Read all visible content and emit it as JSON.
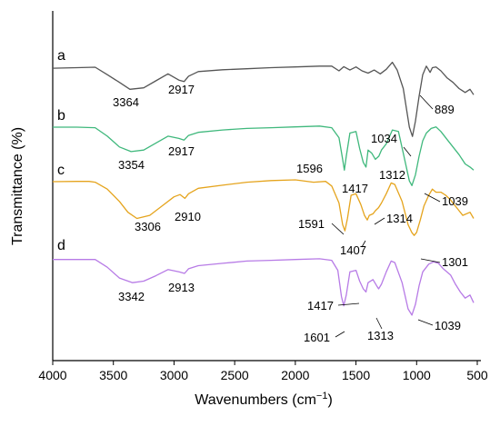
{
  "chart_data": {
    "type": "line",
    "title": "",
    "xlabel": "Wavenumbers (cm",
    "xlabel_sup": "−1",
    "xlabel_close": ")",
    "ylabel": "Transmittance (%)",
    "xlim": [
      4000,
      500
    ],
    "x_reversed": true,
    "y_ticks_shown": false,
    "grid": false,
    "x_ticks": [
      "4000",
      "3500",
      "3000",
      "2500",
      "2000",
      "1500",
      "1000",
      "500"
    ],
    "series": [
      {
        "name": "a",
        "color": "#555555",
        "points": [
          [
            4000,
            0.18
          ],
          [
            3800,
            0.15
          ],
          [
            3650,
            0.12
          ],
          [
            3550,
            0.6
          ],
          [
            3450,
            1.1
          ],
          [
            3364,
            1.55
          ],
          [
            3250,
            1.45
          ],
          [
            3150,
            1.0
          ],
          [
            3050,
            0.55
          ],
          [
            2960,
            0.95
          ],
          [
            2917,
            1.05
          ],
          [
            2880,
            0.7
          ],
          [
            2800,
            0.4
          ],
          [
            2600,
            0.28
          ],
          [
            2400,
            0.22
          ],
          [
            2200,
            0.15
          ],
          [
            2000,
            0.1
          ],
          [
            1800,
            0.05
          ],
          [
            1700,
            0.05
          ],
          [
            1640,
            0.35
          ],
          [
            1600,
            0.08
          ],
          [
            1550,
            0.3
          ],
          [
            1500,
            0.1
          ],
          [
            1450,
            0.35
          ],
          [
            1400,
            0.5
          ],
          [
            1350,
            0.3
          ],
          [
            1300,
            0.55
          ],
          [
            1250,
            0.25
          ],
          [
            1200,
            -0.2
          ],
          [
            1160,
            0.3
          ],
          [
            1110,
            1.5
          ],
          [
            1060,
            4.0
          ],
          [
            1034,
            4.6
          ],
          [
            1010,
            3.6
          ],
          [
            980,
            2.0
          ],
          [
            950,
            0.6
          ],
          [
            920,
            0.05
          ],
          [
            900,
            0.3
          ],
          [
            889,
            0.45
          ],
          [
            870,
            0.15
          ],
          [
            840,
            0.1
          ],
          [
            800,
            0.35
          ],
          [
            750,
            0.8
          ],
          [
            700,
            1.1
          ],
          [
            650,
            1.5
          ],
          [
            600,
            1.75
          ],
          [
            560,
            1.55
          ],
          [
            530,
            1.9
          ]
        ],
        "peak_labels": [
          "3364",
          "2917",
          "889"
        ]
      },
      {
        "name": "b",
        "color": "#3fb87c",
        "points": [
          [
            4000,
            0.12
          ],
          [
            3800,
            0.12
          ],
          [
            3650,
            0.15
          ],
          [
            3550,
            0.7
          ],
          [
            3450,
            1.4
          ],
          [
            3354,
            1.7
          ],
          [
            3250,
            1.6
          ],
          [
            3150,
            1.15
          ],
          [
            3050,
            0.7
          ],
          [
            2960,
            0.85
          ],
          [
            2917,
            0.95
          ],
          [
            2880,
            0.65
          ],
          [
            2800,
            0.45
          ],
          [
            2600,
            0.3
          ],
          [
            2400,
            0.2
          ],
          [
            2200,
            0.15
          ],
          [
            2000,
            0.1
          ],
          [
            1800,
            0.05
          ],
          [
            1700,
            0.15
          ],
          [
            1640,
            0.8
          ],
          [
            1610,
            2.2
          ],
          [
            1596,
            2.9
          ],
          [
            1580,
            2.0
          ],
          [
            1550,
            0.5
          ],
          [
            1500,
            0.4
          ],
          [
            1470,
            1.5
          ],
          [
            1440,
            2.4
          ],
          [
            1417,
            2.7
          ],
          [
            1400,
            1.6
          ],
          [
            1370,
            1.8
          ],
          [
            1340,
            2.2
          ],
          [
            1312,
            2.0
          ],
          [
            1290,
            1.6
          ],
          [
            1250,
            1.2
          ],
          [
            1200,
            0.3
          ],
          [
            1150,
            0.4
          ],
          [
            1110,
            1.8
          ],
          [
            1060,
            3.6
          ],
          [
            1039,
            3.9
          ],
          [
            1010,
            3.2
          ],
          [
            980,
            2.0
          ],
          [
            950,
            1.0
          ],
          [
            920,
            0.5
          ],
          [
            880,
            0.2
          ],
          [
            840,
            0.1
          ],
          [
            800,
            0.4
          ],
          [
            750,
            0.9
          ],
          [
            700,
            1.4
          ],
          [
            650,
            1.9
          ],
          [
            600,
            2.5
          ],
          [
            560,
            2.7
          ],
          [
            530,
            2.9
          ]
        ],
        "peak_labels": [
          "3354",
          "2917",
          "1596",
          "1417",
          "1312",
          "1034",
          "1039"
        ]
      },
      {
        "name": "c",
        "color": "#e5a41d",
        "points": [
          [
            4000,
            0.12
          ],
          [
            3800,
            0.1
          ],
          [
            3700,
            0.1
          ],
          [
            3650,
            0.15
          ],
          [
            3550,
            0.6
          ],
          [
            3450,
            1.4
          ],
          [
            3380,
            2.1
          ],
          [
            3306,
            2.5
          ],
          [
            3200,
            2.3
          ],
          [
            3100,
            1.7
          ],
          [
            3000,
            1.1
          ],
          [
            2950,
            0.95
          ],
          [
            2910,
            1.2
          ],
          [
            2880,
            0.9
          ],
          [
            2800,
            0.55
          ],
          [
            2600,
            0.35
          ],
          [
            2400,
            0.15
          ],
          [
            2200,
            0.05
          ],
          [
            2000,
            0.0
          ],
          [
            1850,
            0.15
          ],
          [
            1750,
            0.1
          ],
          [
            1700,
            0.4
          ],
          [
            1640,
            1.5
          ],
          [
            1610,
            2.9
          ],
          [
            1591,
            3.3
          ],
          [
            1570,
            2.5
          ],
          [
            1540,
            1.0
          ],
          [
            1500,
            0.9
          ],
          [
            1460,
            1.6
          ],
          [
            1430,
            2.3
          ],
          [
            1407,
            2.6
          ],
          [
            1390,
            2.3
          ],
          [
            1360,
            2.2
          ],
          [
            1340,
            2.0
          ],
          [
            1314,
            1.8
          ],
          [
            1290,
            1.5
          ],
          [
            1250,
            0.9
          ],
          [
            1210,
            0.2
          ],
          [
            1180,
            0.3
          ],
          [
            1120,
            1.4
          ],
          [
            1070,
            2.9
          ],
          [
            1040,
            3.4
          ],
          [
            1020,
            3.6
          ],
          [
            1000,
            3.4
          ],
          [
            970,
            2.6
          ],
          [
            940,
            1.7
          ],
          [
            900,
            1.0
          ],
          [
            870,
            0.6
          ],
          [
            840,
            0.8
          ],
          [
            800,
            0.8
          ],
          [
            760,
            1.0
          ],
          [
            720,
            1.3
          ],
          [
            690,
            1.6
          ],
          [
            650,
            2.0
          ],
          [
            620,
            2.3
          ],
          [
            560,
            2.1
          ],
          [
            530,
            2.5
          ]
        ],
        "peak_labels": [
          "3306",
          "2910",
          "1591",
          "1407",
          "1314",
          "1301"
        ]
      },
      {
        "name": "d",
        "color": "#b77be6",
        "points": [
          [
            4000,
            0.1
          ],
          [
            3800,
            0.1
          ],
          [
            3650,
            0.1
          ],
          [
            3550,
            0.6
          ],
          [
            3450,
            1.3
          ],
          [
            3342,
            1.6
          ],
          [
            3250,
            1.5
          ],
          [
            3150,
            1.15
          ],
          [
            3050,
            0.75
          ],
          [
            2960,
            0.9
          ],
          [
            2913,
            1.0
          ],
          [
            2880,
            0.7
          ],
          [
            2800,
            0.5
          ],
          [
            2600,
            0.35
          ],
          [
            2400,
            0.2
          ],
          [
            2200,
            0.15
          ],
          [
            2000,
            0.1
          ],
          [
            1800,
            0.05
          ],
          [
            1700,
            0.15
          ],
          [
            1650,
            0.8
          ],
          [
            1620,
            2.5
          ],
          [
            1601,
            3.1
          ],
          [
            1580,
            2.4
          ],
          [
            1550,
            0.9
          ],
          [
            1500,
            0.8
          ],
          [
            1470,
            1.5
          ],
          [
            1440,
            2.0
          ],
          [
            1417,
            2.2
          ],
          [
            1400,
            1.6
          ],
          [
            1360,
            1.4
          ],
          [
            1330,
            1.8
          ],
          [
            1313,
            2.0
          ],
          [
            1290,
            1.7
          ],
          [
            1250,
            0.9
          ],
          [
            1210,
            0.2
          ],
          [
            1180,
            0.3
          ],
          [
            1120,
            1.6
          ],
          [
            1070,
            3.3
          ],
          [
            1039,
            3.7
          ],
          [
            1010,
            3.0
          ],
          [
            980,
            1.8
          ],
          [
            950,
            0.9
          ],
          [
            900,
            0.4
          ],
          [
            860,
            0.25
          ],
          [
            820,
            0.35
          ],
          [
            780,
            0.7
          ],
          [
            720,
            1.1
          ],
          [
            680,
            1.7
          ],
          [
            640,
            2.2
          ],
          [
            600,
            2.6
          ],
          [
            560,
            2.4
          ],
          [
            530,
            2.9
          ]
        ],
        "peak_labels": [
          "3342",
          "2913",
          "1417",
          "1313",
          "1601",
          "1039"
        ]
      }
    ]
  }
}
